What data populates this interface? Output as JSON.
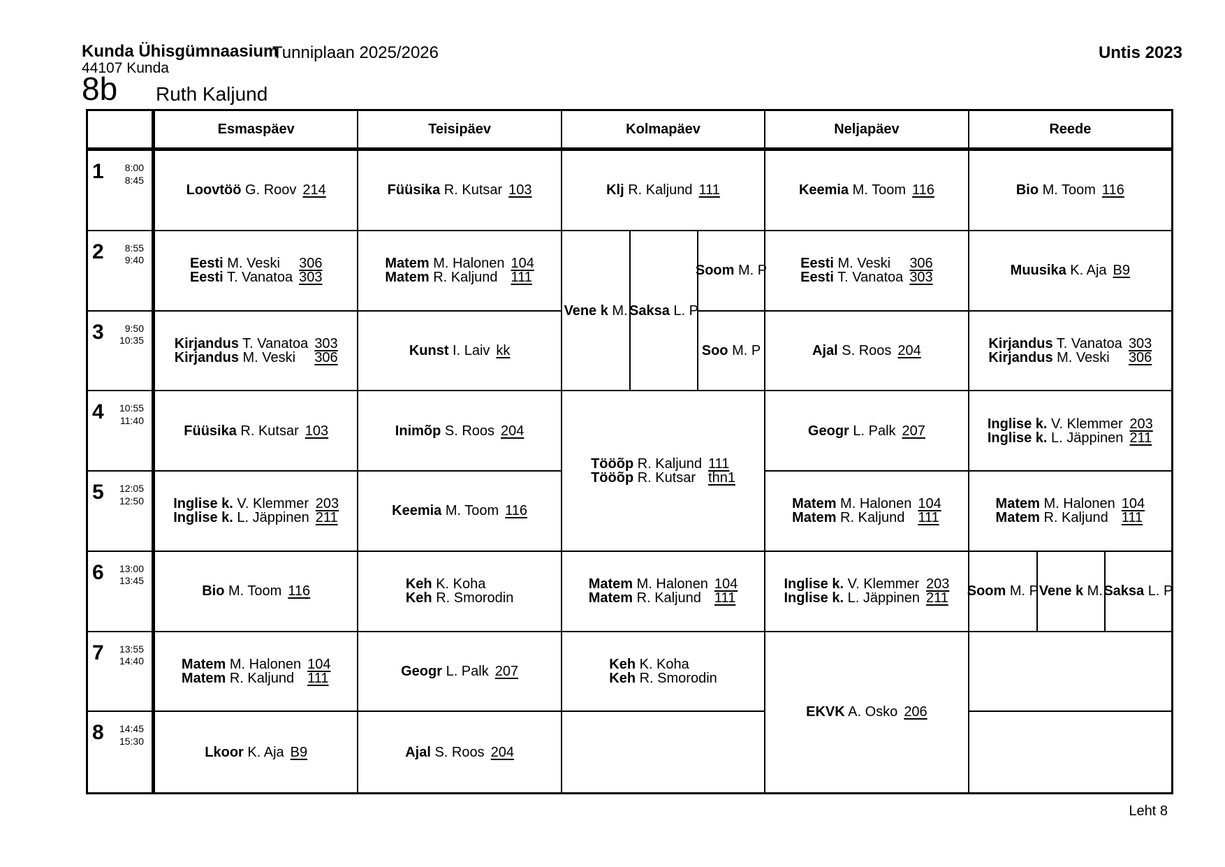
{
  "page": {
    "school_name": "Kunda Ühisgümnaasium",
    "address": "44107 Kunda",
    "plan_title": "Tunniplaan 2025/2026",
    "software": "Untis 2023",
    "class_name": "8b",
    "person_name": "Ruth Kaljund",
    "footer": "Leht 8"
  },
  "timetable": {
    "periods": [
      {
        "num": "1",
        "start": "8:00",
        "end": "8:45"
      },
      {
        "num": "2",
        "start": "8:55",
        "end": "9:40"
      },
      {
        "num": "3",
        "start": "9:50",
        "end": "10:35"
      },
      {
        "num": "4",
        "start": "10:55",
        "end": "11:40"
      },
      {
        "num": "5",
        "start": "12:05",
        "end": "12:50"
      },
      {
        "num": "6",
        "start": "13:00",
        "end": "13:45"
      },
      {
        "num": "7",
        "start": "13:55",
        "end": "14:40"
      },
      {
        "num": "8",
        "start": "14:45",
        "end": "15:30"
      }
    ],
    "day_columns": [
      {
        "label": "Esmaspäev",
        "cells": [
          {
            "row": 1,
            "span": 1,
            "col": 0,
            "lines": [
              {
                "subject": "Loovtöö",
                "teacher": "G. Roov",
                "room": "214"
              }
            ]
          },
          {
            "row": 2,
            "span": 1,
            "col": 0,
            "lines": [
              {
                "subject": "Eesti",
                "teacher": "M. Veski",
                "room": "306"
              },
              {
                "subject": "Eesti",
                "teacher": "T. Vanatoa",
                "room": "303"
              }
            ]
          },
          {
            "row": 3,
            "span": 1,
            "col": 0,
            "lines": [
              {
                "subject": "Kirjandus",
                "teacher": "T. Vanatoa",
                "room": "303"
              },
              {
                "subject": "Kirjandus",
                "teacher": "M. Veski",
                "room": "306"
              }
            ]
          },
          {
            "row": 4,
            "span": 1,
            "col": 0,
            "lines": [
              {
                "subject": "Füüsika",
                "teacher": "R. Kutsar",
                "room": "103"
              }
            ]
          },
          {
            "row": 5,
            "span": 1,
            "col": 0,
            "lines": [
              {
                "subject": "Inglise k.",
                "teacher": "V. Klemmer",
                "room": "203"
              },
              {
                "subject": "Inglise k.",
                "teacher": "L. Jäppinen",
                "room": "211"
              }
            ]
          },
          {
            "row": 6,
            "span": 1,
            "col": 0,
            "lines": [
              {
                "subject": "Bio",
                "teacher": "M. Toom",
                "room": "116"
              }
            ]
          },
          {
            "row": 7,
            "span": 1,
            "col": 0,
            "lines": [
              {
                "subject": "Matem",
                "teacher": "M. Halonen",
                "room": "104"
              },
              {
                "subject": "Matem",
                "teacher": "R. Kaljund",
                "room": "111"
              }
            ]
          },
          {
            "row": 8,
            "span": 1,
            "col": 0,
            "lines": [
              {
                "subject": "Lkoor",
                "teacher": "K. Aja",
                "room": "B9"
              }
            ]
          }
        ]
      },
      {
        "label": "Teisipäev",
        "cells": [
          {
            "row": 1,
            "span": 1,
            "col": 0,
            "lines": [
              {
                "subject": "Füüsika",
                "teacher": "R. Kutsar",
                "room": "103"
              }
            ]
          },
          {
            "row": 2,
            "span": 1,
            "col": 0,
            "lines": [
              {
                "subject": "Matem",
                "teacher": "M. Halonen",
                "room": "104"
              },
              {
                "subject": "Matem",
                "teacher": "R. Kaljund",
                "room": "111"
              }
            ]
          },
          {
            "row": 3,
            "span": 1,
            "col": 0,
            "lines": [
              {
                "subject": "Kunst",
                "teacher": "I. Laiv",
                "room": "kk"
              }
            ]
          },
          {
            "row": 4,
            "span": 1,
            "col": 0,
            "lines": [
              {
                "subject": "Inimõp",
                "teacher": "S. Roos",
                "room": "204"
              }
            ]
          },
          {
            "row": 5,
            "span": 1,
            "col": 0,
            "lines": [
              {
                "subject": "Keemia",
                "teacher": "M. Toom",
                "room": "116"
              }
            ]
          },
          {
            "row": 6,
            "span": 1,
            "col": 0,
            "lines": [
              {
                "subject": "Keh",
                "teacher": "K. Koha",
                "room": ""
              },
              {
                "subject": "Keh",
                "teacher": "R. Smorodin",
                "room": ""
              }
            ]
          },
          {
            "row": 7,
            "span": 1,
            "col": 0,
            "lines": [
              {
                "subject": "Geogr",
                "teacher": "L. Palk",
                "room": "207"
              }
            ]
          },
          {
            "row": 8,
            "span": 1,
            "col": 0,
            "lines": [
              {
                "subject": "Ajal",
                "teacher": "S. Roos",
                "room": "204"
              }
            ]
          }
        ]
      },
      {
        "label": "Kolmapäev",
        "cells": [
          {
            "row": 1,
            "span": 1,
            "col": 0,
            "lines": [
              {
                "subject": "Klj",
                "teacher": "R. Kaljund",
                "room": "111"
              }
            ]
          },
          {
            "row": 2,
            "span": 2,
            "col": 1,
            "lines": [
              {
                "subject": "Vene k",
                "teacher": "M.",
                "room": ""
              }
            ]
          },
          {
            "row": 2,
            "span": 2,
            "col": 2,
            "lines": [
              {
                "subject": "Saksa",
                "teacher": "L. P",
                "room": ""
              }
            ]
          },
          {
            "row": 2,
            "span": 1,
            "col": 3,
            "lines": [
              {
                "subject": "Soom",
                "teacher": "M. P",
                "room": ""
              }
            ]
          },
          {
            "row": 3,
            "span": 1,
            "col": 3,
            "lines": [
              {
                "subject": "Soo",
                "teacher": "M. P",
                "room": ""
              }
            ]
          },
          {
            "row": 4,
            "span": 2,
            "col": 0,
            "lines": [
              {
                "subject": "Tööõp",
                "teacher": "R. Kaljund",
                "room": "111"
              },
              {
                "subject": "Tööõp",
                "teacher": "R. Kutsar",
                "room": "thn1"
              }
            ]
          },
          {
            "row": 6,
            "span": 1,
            "col": 0,
            "lines": [
              {
                "subject": "Matem",
                "teacher": "M. Halonen",
                "room": "104"
              },
              {
                "subject": "Matem",
                "teacher": "R. Kaljund",
                "room": "111"
              }
            ]
          },
          {
            "row": 7,
            "span": 1,
            "col": 0,
            "lines": [
              {
                "subject": "Keh",
                "teacher": "K. Koha",
                "room": ""
              },
              {
                "subject": "Keh",
                "teacher": "R. Smorodin",
                "room": ""
              }
            ]
          },
          {
            "row": 8,
            "span": 1,
            "col": 0,
            "lines": []
          }
        ]
      },
      {
        "label": "Neljapäev",
        "cells": [
          {
            "row": 1,
            "span": 1,
            "col": 0,
            "lines": [
              {
                "subject": "Keemia",
                "teacher": "M. Toom",
                "room": "116"
              }
            ]
          },
          {
            "row": 2,
            "span": 1,
            "col": 0,
            "lines": [
              {
                "subject": "Eesti",
                "teacher": "M. Veski",
                "room": "306"
              },
              {
                "subject": "Eesti",
                "teacher": "T. Vanatoa",
                "room": "303"
              }
            ]
          },
          {
            "row": 3,
            "span": 1,
            "col": 0,
            "lines": [
              {
                "subject": "Ajal",
                "teacher": "S. Roos",
                "room": "204"
              }
            ]
          },
          {
            "row": 4,
            "span": 1,
            "col": 0,
            "lines": [
              {
                "subject": "Geogr",
                "teacher": "L. Palk",
                "room": "207"
              }
            ]
          },
          {
            "row": 5,
            "span": 1,
            "col": 0,
            "lines": [
              {
                "subject": "Matem",
                "teacher": "M. Halonen",
                "room": "104"
              },
              {
                "subject": "Matem",
                "teacher": "R. Kaljund",
                "room": "111"
              }
            ]
          },
          {
            "row": 6,
            "span": 1,
            "col": 0,
            "lines": [
              {
                "subject": "Inglise k.",
                "teacher": "V. Klemmer",
                "room": "203"
              },
              {
                "subject": "Inglise k.",
                "teacher": "L. Jäppinen",
                "room": "211"
              }
            ]
          },
          {
            "row": 7,
            "span": 2,
            "col": 0,
            "lines": [
              {
                "subject": "EKVK",
                "teacher": "A. Osko",
                "room": "206"
              }
            ]
          }
        ]
      },
      {
        "label": "Reede",
        "cells": [
          {
            "row": 1,
            "span": 1,
            "col": 0,
            "lines": [
              {
                "subject": "Bio",
                "teacher": "M. Toom",
                "room": "116"
              }
            ]
          },
          {
            "row": 2,
            "span": 1,
            "col": 0,
            "lines": [
              {
                "subject": "Muusika",
                "teacher": "K. Aja",
                "room": "B9"
              }
            ]
          },
          {
            "row": 3,
            "span": 1,
            "col": 0,
            "lines": [
              {
                "subject": "Kirjandus",
                "teacher": "T. Vanatoa",
                "room": "303"
              },
              {
                "subject": "Kirjandus",
                "teacher": "M. Veski",
                "room": "306"
              }
            ]
          },
          {
            "row": 4,
            "span": 1,
            "col": 0,
            "lines": [
              {
                "subject": "Inglise k.",
                "teacher": "V. Klemmer",
                "room": "203"
              },
              {
                "subject": "Inglise k.",
                "teacher": "L. Jäppinen",
                "room": "211"
              }
            ]
          },
          {
            "row": 5,
            "span": 1,
            "col": 0,
            "lines": [
              {
                "subject": "Matem",
                "teacher": "M. Halonen",
                "room": "104"
              },
              {
                "subject": "Matem",
                "teacher": "R. Kaljund",
                "room": "111"
              }
            ]
          },
          {
            "row": 6,
            "span": 1,
            "col": 1,
            "lines": [
              {
                "subject": "Soom",
                "teacher": "M. P",
                "room": ""
              }
            ]
          },
          {
            "row": 6,
            "span": 1,
            "col": 2,
            "lines": [
              {
                "subject": "Vene k",
                "teacher": "M.",
                "room": ""
              }
            ]
          },
          {
            "row": 6,
            "span": 1,
            "col": 3,
            "lines": [
              {
                "subject": "Saksa",
                "teacher": "L. P",
                "room": ""
              }
            ]
          },
          {
            "row": 7,
            "span": 1,
            "col": 0,
            "lines": []
          },
          {
            "row": 8,
            "span": 1,
            "col": 0,
            "lines": []
          }
        ]
      }
    ]
  }
}
